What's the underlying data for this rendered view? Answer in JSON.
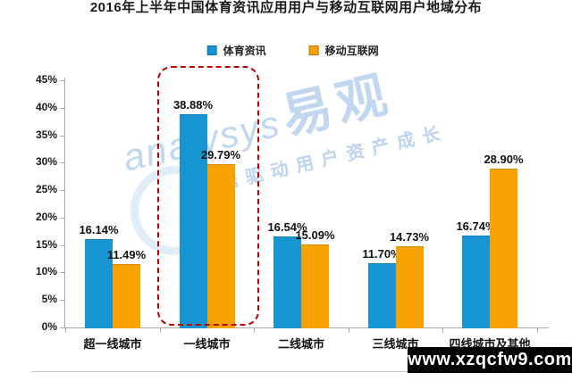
{
  "title": "2016年上半年中国体育资讯应用用户与移动互联网用户地域分布",
  "chart_data": {
    "type": "bar",
    "title": "2016年上半年中国体育资讯应用用户与移动互联网用户地域分布",
    "categories": [
      "超一线城市",
      "一线城市",
      "二线城市",
      "三线城市",
      "四线城市及其他"
    ],
    "series": [
      {
        "name": "体育资讯",
        "color": "#1795D3",
        "values": [
          16.14,
          38.88,
          16.54,
          11.7,
          16.74
        ]
      },
      {
        "name": "移动互联网",
        "color": "#F7A200",
        "values": [
          11.49,
          29.79,
          15.09,
          14.73,
          28.9
        ]
      }
    ],
    "value_labels": [
      [
        "16.14%",
        "38.88%",
        "16.54%",
        "11.70%",
        "16.74%"
      ],
      [
        "11.49%",
        "29.79%",
        "15.09%",
        "14.73%",
        "28.90%"
      ]
    ],
    "xlabel": "",
    "ylabel": "",
    "ylim": [
      0,
      45
    ],
    "ytick_step": 5,
    "ytick_labels": [
      "0%",
      "5%",
      "10%",
      "15%",
      "20%",
      "25%",
      "30%",
      "35%",
      "40%",
      "45%"
    ],
    "grid": false,
    "legend_position": "top",
    "highlight": {
      "category_index": 1,
      "style": "dashed-rounded-box",
      "color": "#C00000"
    }
  },
  "watermark": {
    "brand_en": "analysys",
    "brand_cn": "易观",
    "slogan": "数据驱动用户资产成长",
    "site": "www.xzqcfw9.com",
    "brand_color": "#abc9e9",
    "site_banner_bg": "#000000"
  }
}
